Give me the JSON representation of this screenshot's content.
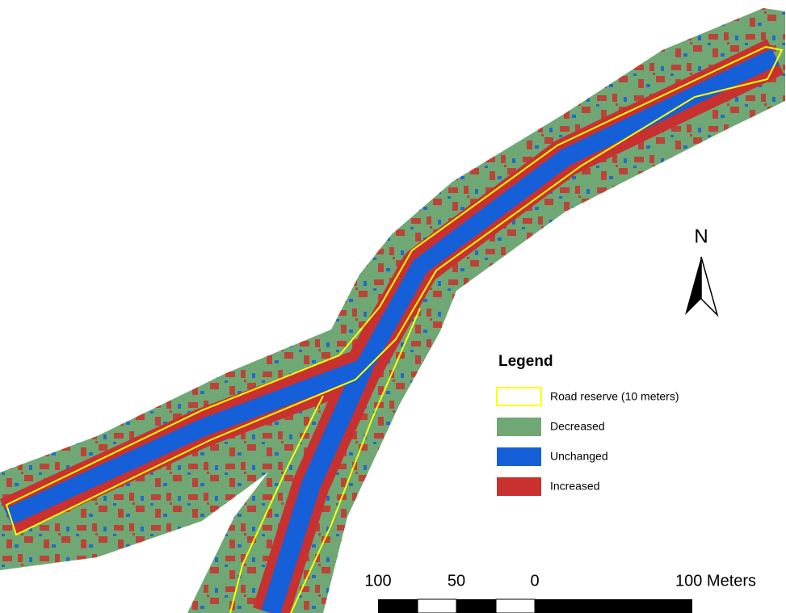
{
  "legend": {
    "title": "Legend",
    "items": [
      {
        "label": "Road reserve (10 meters)"
      },
      {
        "label": "Decreased"
      },
      {
        "label": "Unchanged"
      },
      {
        "label": "Increased"
      }
    ]
  },
  "north_arrow": {
    "label": "N"
  },
  "scale_bar": {
    "labels": [
      "100",
      "50",
      "0",
      "100 Meters"
    ]
  }
}
